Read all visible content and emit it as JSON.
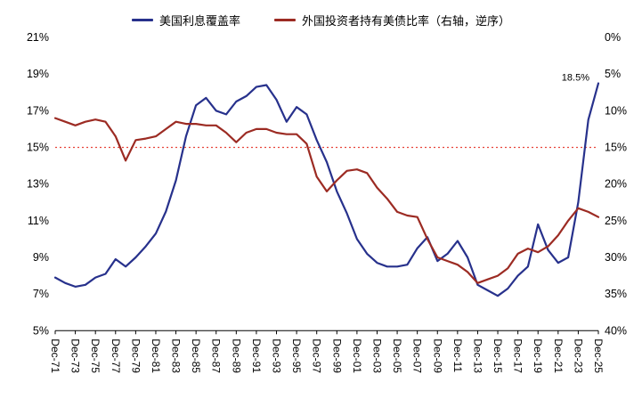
{
  "chart_data": {
    "type": "line",
    "title": "",
    "start_year": 1971,
    "x_tick_years": [
      1971,
      1973,
      1975,
      1977,
      1979,
      1981,
      1983,
      1985,
      1987,
      1989,
      1991,
      1993,
      1995,
      1997,
      1999,
      2001,
      2003,
      2005,
      2007,
      2009,
      2011,
      2013,
      2015,
      2017,
      2019,
      2021,
      2023,
      2025
    ],
    "x_tick_labels": [
      "Dec-71",
      "Dec-73",
      "Dec-75",
      "Dec-77",
      "Dec-79",
      "Dec-81",
      "Dec-83",
      "Dec-85",
      "Dec-87",
      "Dec-89",
      "Dec-91",
      "Dec-93",
      "Dec-95",
      "Dec-97",
      "Dec-99",
      "Dec-01",
      "Dec-03",
      "Dec-05",
      "Dec-07",
      "Dec-09",
      "Dec-11",
      "Dec-13",
      "Dec-15",
      "Dec-17",
      "Dec-19",
      "Dec-21",
      "Dec-23",
      "Dec-25"
    ],
    "left_axis": {
      "min": 5,
      "max": 21,
      "tick_labels": [
        "21%",
        "19%",
        "17%",
        "15%",
        "13%",
        "11%",
        "9%",
        "7%",
        "5%"
      ]
    },
    "right_axis": {
      "min": 0,
      "max": 40,
      "inverted": true,
      "tick_labels": [
        "0%",
        "5%",
        "10%",
        "15%",
        "20%",
        "25%",
        "30%",
        "35%",
        "40%"
      ]
    },
    "reference_line": {
      "value": 15,
      "axis": "left",
      "color": "#e8443a",
      "style": "dotted"
    },
    "annotation": {
      "label": "18.5%",
      "year": 2025,
      "value": 18.5
    },
    "grid": "off",
    "legend_position": "top",
    "series": [
      {
        "name": "美国利息覆盖率",
        "axis": "left",
        "color": "#27318c",
        "values": [
          7.9,
          7.6,
          7.4,
          7.5,
          7.9,
          8.1,
          8.9,
          8.5,
          9.0,
          9.6,
          10.3,
          11.5,
          13.2,
          15.6,
          17.3,
          17.7,
          17.0,
          16.8,
          17.5,
          17.8,
          18.3,
          18.4,
          17.6,
          16.4,
          17.2,
          16.8,
          15.4,
          14.2,
          12.6,
          11.4,
          10.0,
          9.2,
          8.7,
          8.5,
          8.5,
          8.6,
          9.5,
          10.1,
          8.8,
          9.2,
          9.9,
          9.0,
          7.5,
          7.2,
          6.9,
          7.3,
          8.0,
          8.5,
          10.8,
          9.4,
          8.7,
          9.0,
          12.0,
          16.5,
          18.5
        ]
      },
      {
        "name": "外国投资者持有美债比率（右轴，逆序）",
        "axis": "right",
        "color": "#9c2b23",
        "values": [
          11.0,
          11.5,
          12.0,
          11.5,
          11.2,
          11.5,
          13.5,
          16.8,
          14.0,
          13.8,
          13.5,
          12.5,
          11.5,
          11.8,
          11.8,
          12.0,
          12.0,
          13.0,
          14.3,
          13.0,
          12.5,
          12.5,
          13.0,
          13.2,
          13.2,
          14.5,
          19.0,
          21.0,
          19.5,
          18.2,
          18.0,
          18.5,
          20.5,
          22.0,
          23.8,
          24.3,
          24.5,
          27.5,
          30.0,
          30.5,
          31.0,
          32.0,
          33.5,
          33.0,
          32.5,
          31.5,
          29.5,
          28.8,
          29.3,
          28.5,
          27.0,
          25.0,
          23.3,
          23.8,
          24.5
        ]
      }
    ]
  }
}
